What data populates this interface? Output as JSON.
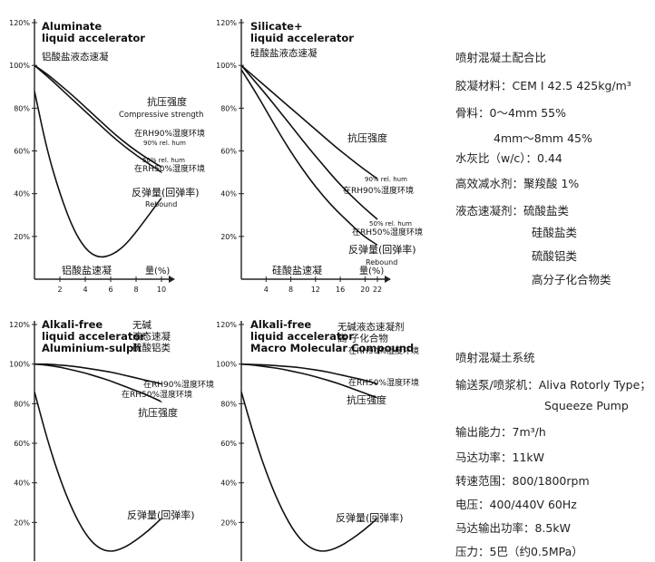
{
  "chart_data": [
    {
      "type": "line",
      "title": "Aluminate\nliquid accelerator",
      "subtitle": "铝酸盐液态速凝",
      "xlabel": "铝酸盐速凝",
      "xunit": "量(%)",
      "x_ticks": [
        "2",
        "4",
        "6",
        "8",
        "10"
      ],
      "y_ticks": [
        "20%",
        "40%",
        "60%",
        "80%",
        "100%",
        "120%"
      ],
      "ylim": [
        0,
        120
      ],
      "annotations": [
        {
          "text": "抗压强度",
          "ref": "strength"
        },
        {
          "text": "Compressive strength",
          "ref": "strength"
        },
        {
          "text": "在RH90%湿度环境",
          "ref": "s90"
        },
        {
          "text": "90% rel. hum",
          "ref": "s90"
        },
        {
          "text": "50% rel. hum",
          "ref": "s50"
        },
        {
          "text": "在RH50%湿度环境",
          "ref": "s50"
        },
        {
          "text": "反弹量(回弹率)",
          "ref": "rebound"
        },
        {
          "text": "Rebound",
          "ref": "rebound"
        }
      ],
      "series": [
        {
          "id": "s90",
          "x": [
            0,
            1,
            2,
            3,
            4,
            5,
            6,
            7,
            8,
            9,
            10
          ],
          "y": [
            100,
            96,
            91,
            86,
            80.5,
            75,
            69.5,
            64.5,
            60,
            56,
            52.5
          ]
        },
        {
          "id": "s50",
          "x": [
            0,
            1,
            2,
            3,
            4,
            5,
            6,
            7,
            8,
            9,
            10
          ],
          "y": [
            100,
            95,
            89.5,
            84,
            78.5,
            73,
            67.5,
            62.5,
            58,
            54,
            50
          ]
        },
        {
          "id": "rebound",
          "x": [
            0,
            1,
            2,
            3,
            4,
            5,
            6,
            7,
            8,
            9,
            10
          ],
          "y": [
            88,
            60,
            40,
            24,
            14,
            10,
            11,
            15,
            22,
            30,
            38
          ]
        }
      ]
    },
    {
      "type": "line",
      "title": "Silicate+\nliquid accelerator",
      "subtitle": "硅酸盐液态速凝",
      "xlabel": "硅酸盐速凝",
      "xunit": "量(%)",
      "x_ticks": [
        "4",
        "8",
        "12",
        "16",
        "20",
        "22"
      ],
      "y_ticks": [
        "20%",
        "40%",
        "60%",
        "80%",
        "100%",
        "120%"
      ],
      "ylim": [
        0,
        120
      ],
      "annotations": [
        {
          "text": "抗压强度",
          "ref": "strength"
        },
        {
          "text": "90% rel. hum",
          "ref": "s90"
        },
        {
          "text": "在RH90%湿度环境",
          "ref": "s90"
        },
        {
          "text": "50% rel. hum",
          "ref": "s50"
        },
        {
          "text": "在RH50%湿度环境",
          "ref": "s50"
        },
        {
          "text": "反弹量(回弹率)",
          "ref": "rebound"
        },
        {
          "text": "Rebound",
          "ref": "rebound"
        }
      ],
      "series": [
        {
          "id": "s90",
          "x": [
            0,
            2.2,
            4.4,
            6.6,
            8.8,
            11,
            13.2,
            15.4,
            17.6,
            19.8,
            22
          ],
          "y": [
            100,
            94.5,
            89,
            83.5,
            78,
            72.5,
            67,
            61.5,
            56.5,
            51.5,
            47
          ]
        },
        {
          "id": "s50",
          "x": [
            0,
            2.2,
            4.4,
            6.6,
            8.8,
            11,
            13.2,
            15.4,
            17.6,
            19.8,
            22
          ],
          "y": [
            100,
            92.5,
            85,
            77,
            69,
            61,
            53.5,
            46,
            39.5,
            33.5,
            28
          ]
        },
        {
          "id": "rebound",
          "x": [
            0,
            2.2,
            4.4,
            6.6,
            8.8,
            11,
            13.2,
            15.4,
            17.6,
            19.8,
            22
          ],
          "y": [
            98,
            88,
            77,
            66,
            56,
            47,
            39,
            32,
            26,
            20,
            16
          ]
        }
      ]
    },
    {
      "type": "line",
      "title": "Alkali-free\nliquid accelerator\nAluminium-sulph",
      "subtitle": "无碱\n液态速凝\n硫酸铝类",
      "xlabel": "",
      "xunit": "",
      "x_ticks": [],
      "y_ticks": [
        "20%",
        "40%",
        "60%",
        "80%",
        "100%",
        "120%"
      ],
      "ylim": [
        0,
        120
      ],
      "annotations": [
        {
          "text": "在RH90%湿度环境",
          "ref": "s90"
        },
        {
          "text": "在RH50%湿度环境",
          "ref": "s50"
        },
        {
          "text": "抗压强度",
          "ref": "strength"
        },
        {
          "text": "反弹量(回弹率)",
          "ref": "rebound"
        }
      ],
      "series": [
        {
          "id": "s90",
          "x": [
            0,
            1,
            2,
            3,
            4,
            5,
            6,
            7,
            8,
            9,
            10
          ],
          "y": [
            100,
            100,
            99.5,
            99,
            98,
            97,
            96,
            94.5,
            93,
            91.5,
            90
          ]
        },
        {
          "id": "s50",
          "x": [
            0,
            1,
            2,
            3,
            4,
            5,
            6,
            7,
            8,
            9,
            10
          ],
          "y": [
            100,
            99.5,
            98.5,
            97,
            95.5,
            93.5,
            91.5,
            89,
            86.5,
            84,
            81
          ]
        },
        {
          "id": "rebound",
          "x": [
            0,
            1,
            2,
            3,
            4,
            5,
            6,
            7,
            8,
            9,
            10
          ],
          "y": [
            86,
            62,
            42,
            26,
            14,
            7,
            5,
            7,
            11,
            16,
            22
          ]
        }
      ]
    },
    {
      "type": "line",
      "title": "Alkali-free\nliquid accelerator\nMacro Molecular Compound",
      "subtitle": "无碱液态速凝剂\n高 子化合物",
      "xlabel": "",
      "xunit": "",
      "x_ticks": [],
      "y_ticks": [
        "20%",
        "40%",
        "60%",
        "80%",
        "100%",
        "120%"
      ],
      "ylim": [
        0,
        120
      ],
      "annotations": [
        {
          "text": "在RH90%湿度环境",
          "ref": "s90"
        },
        {
          "text": "在RH50%湿度环境",
          "ref": "s50"
        },
        {
          "text": "抗压强度",
          "ref": "strength"
        },
        {
          "text": "反弹量(回弹率)",
          "ref": "rebound"
        }
      ],
      "series": [
        {
          "id": "s90",
          "x": [
            0,
            1,
            2,
            3,
            4,
            5,
            6,
            7,
            8,
            9,
            10
          ],
          "y": [
            100,
            99.8,
            99.5,
            99,
            98.5,
            97.5,
            96.5,
            95,
            93.5,
            92,
            90
          ]
        },
        {
          "id": "s50",
          "x": [
            0,
            1,
            2,
            3,
            4,
            5,
            6,
            7,
            8,
            9,
            10
          ],
          "y": [
            100,
            99.5,
            98.5,
            97.5,
            96,
            94.5,
            92.5,
            90.5,
            88,
            85.5,
            83
          ]
        },
        {
          "id": "rebound",
          "x": [
            0,
            1,
            2,
            3,
            4,
            5,
            6,
            7,
            8,
            9,
            10
          ],
          "y": [
            86,
            62,
            42,
            26,
            14,
            7,
            5,
            7,
            11,
            16,
            22
          ]
        }
      ]
    }
  ],
  "mix": {
    "heading": "喷射混凝土配合比",
    "lines": [
      "胶凝材料：CEM I 42.5  425kg/m³",
      "骨料：0～4mm  55%",
      "4mm～8mm  45%",
      "水灰比（w/c）：0.44",
      "高效减水剂：聚羧酸  1%",
      "液态速凝剂：硫酸盐类",
      "硅酸盐类",
      "硫酸铝类",
      "高分子化合物类"
    ]
  },
  "system": {
    "heading": "喷射混凝土系统",
    "lines": [
      "输送泵/喷浆机：Aliva Rotorly Type；",
      "Squeeze Pump",
      "输出能力：7m³/h",
      "马达功率：11kW",
      "转速范围：800/1800rpm",
      "电压：400/440V 60Hz",
      "马达输出功率：8.5kW",
      "压力：5巴（约0.5MPa）"
    ]
  }
}
